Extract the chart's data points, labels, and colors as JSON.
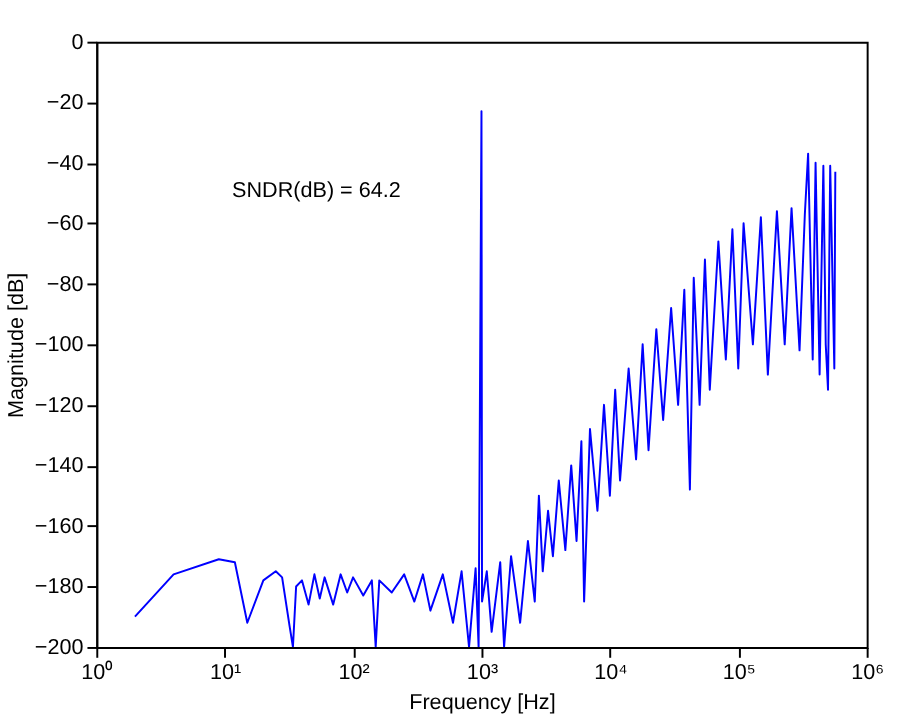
{
  "chart_data": {
    "type": "line",
    "xlabel": "Frequency [Hz]",
    "ylabel": "Magnitude [dB]",
    "annotations": [
      "SNDR(dB) = 64.2"
    ],
    "log": "x",
    "grid": false,
    "marker": "none",
    "line_style": "solid",
    "xlim": [
      1,
      1000000
    ],
    "ylim": [
      -200,
      0
    ],
    "xticks": [
      {
        "value": 1,
        "label": "10⁰"
      },
      {
        "value": 10,
        "label": "10¹"
      },
      {
        "value": 100,
        "label": "10²"
      },
      {
        "value": 1000,
        "label": "10³"
      },
      {
        "value": 10000,
        "label": "10⁴"
      },
      {
        "value": 100000,
        "label": "10⁵"
      },
      {
        "value": 1000000,
        "label": "10⁶"
      }
    ],
    "yticks": [
      -200,
      -180,
      -160,
      -140,
      -120,
      -100,
      -80,
      -60,
      -40,
      -20,
      0
    ],
    "series": [
      {
        "color": "#0000ff",
        "x": [
          2,
          4,
          9,
          12,
          15,
          20,
          25,
          28,
          32,
          34,
          36,
          40,
          45,
          50,
          55,
          60,
          70,
          80,
          90,
          100,
          120,
          140,
          150,
          160,
          200,
          250,
          300,
          350,
          400,
          500,
          600,
          700,
          800,
          900,
          950,
          1000,
          1010,
          1100,
          1200,
          1400,
          1500,
          1700,
          2000,
          2300,
          2600,
          2800,
          3000,
          3300,
          3600,
          4000,
          4500,
          5000,
          5500,
          6000,
          6300,
          7000,
          8000,
          9000,
          10000,
          11000,
          12000,
          14000,
          16000,
          18000,
          20000,
          23000,
          26000,
          30000,
          34000,
          38000,
          42000,
          45000,
          50000,
          55000,
          60000,
          70000,
          80000,
          90000,
          100000,
          110000,
          130000,
          150000,
          170000,
          200000,
          230000,
          260000,
          300000,
          330000,
          350000,
          380000,
          400000,
          430000,
          460000,
          480000,
          500000,
          520000,
          560000,
          570000
        ],
        "values": [
          -190,
          -176,
          -171,
          -172,
          -192,
          -178,
          -175,
          -177,
          -193,
          -200,
          -180,
          -178,
          -186,
          -176,
          -184,
          -177,
          -186,
          -176,
          -182,
          -177,
          -183,
          -178,
          -200,
          -178,
          -182,
          -176,
          -185,
          -176,
          -188,
          -176,
          -192,
          -175,
          -200,
          -174,
          -200,
          -23,
          -185,
          -175,
          -195,
          -172,
          -200,
          -170,
          -192,
          -165,
          -185,
          -150,
          -175,
          -155,
          -170,
          -145,
          -168,
          -140,
          -165,
          -132,
          -185,
          -128,
          -155,
          -120,
          -150,
          -115,
          -145,
          -108,
          -138,
          -100,
          -135,
          -95,
          -125,
          -88,
          -120,
          -82,
          -148,
          -78,
          -120,
          -72,
          -115,
          -66,
          -105,
          -62,
          -108,
          -60,
          -100,
          -58,
          -110,
          -56,
          -100,
          -55,
          -102,
          -57,
          -37,
          -105,
          -40,
          -110,
          -41,
          -100,
          -115,
          -41,
          -108,
          -43
        ]
      }
    ]
  }
}
